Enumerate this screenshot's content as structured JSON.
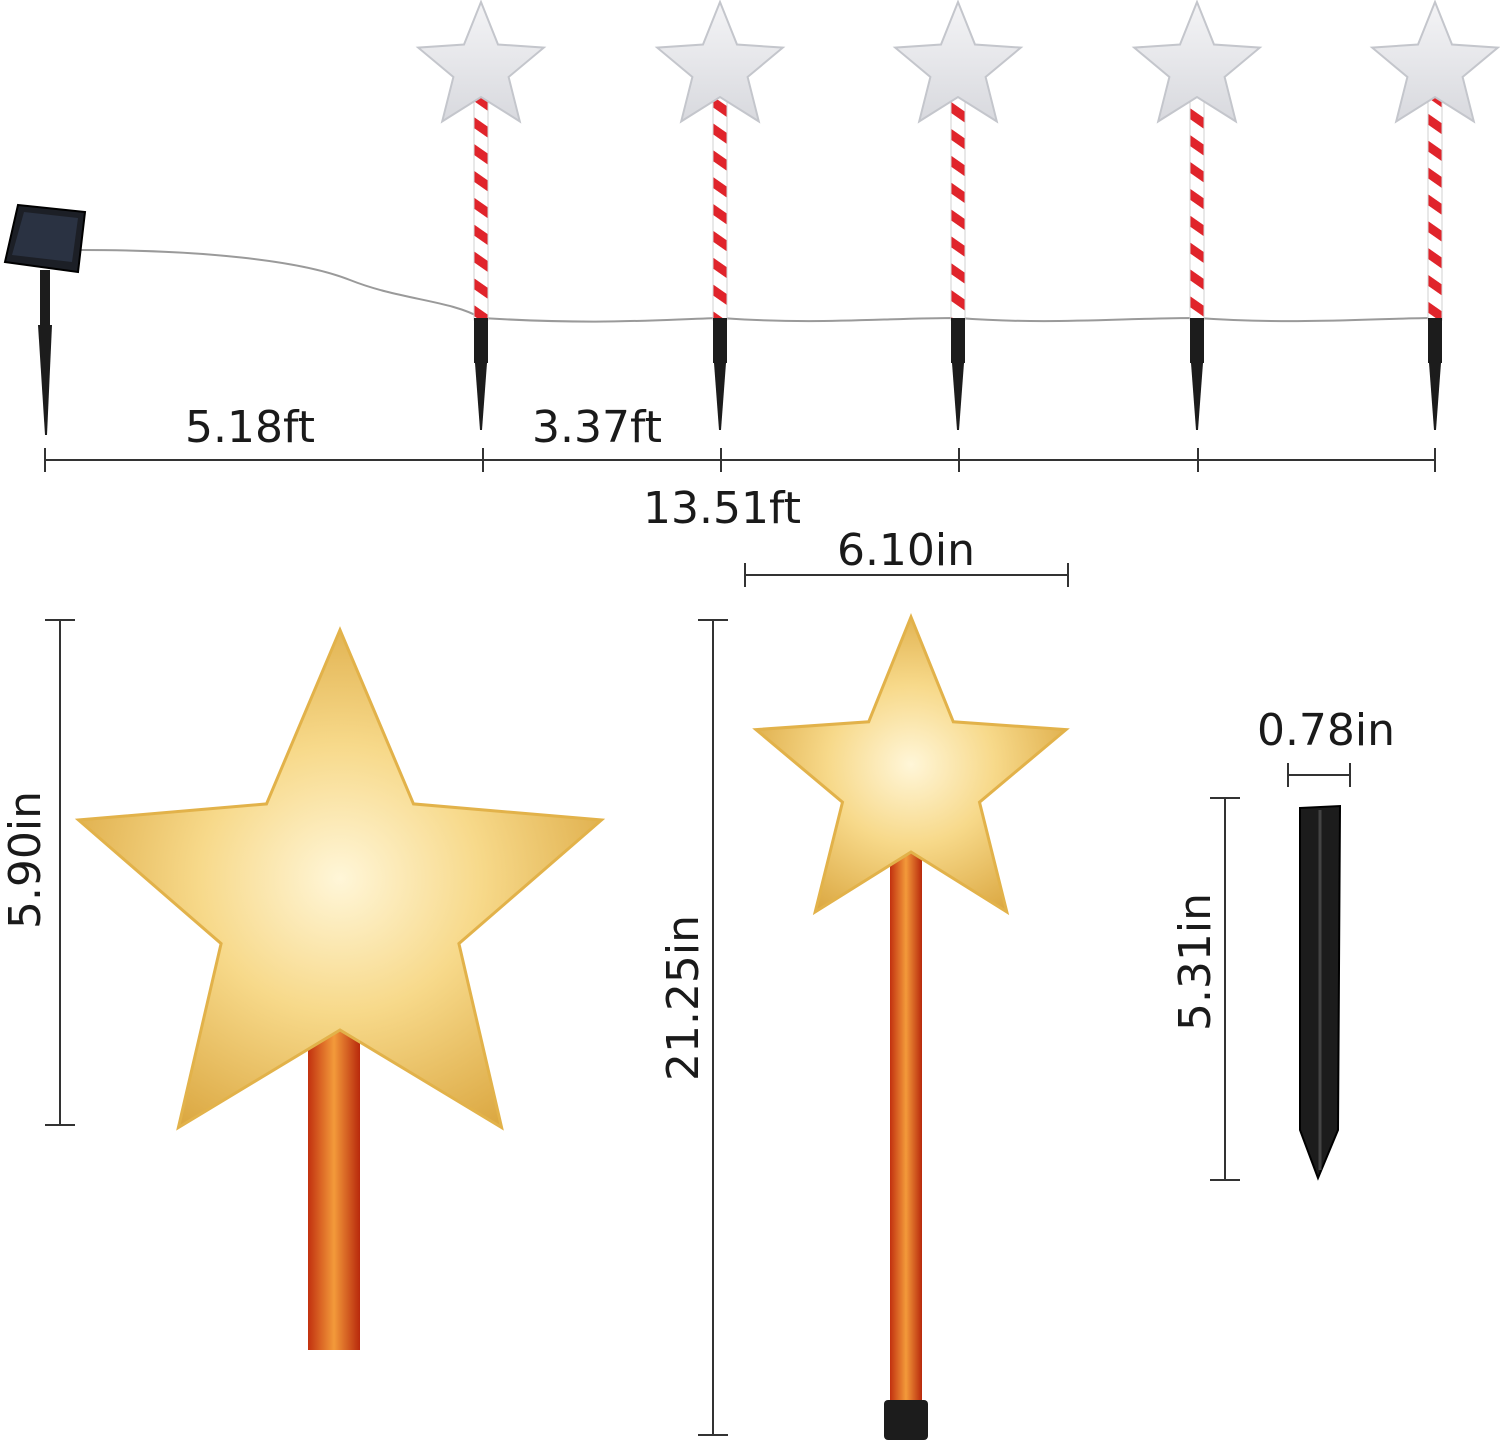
{
  "dimensions": {
    "panel_to_first_stake": "5.18ft",
    "stake_spacing": "3.37ft",
    "total_length": "13.51ft",
    "star_width": "6.10in",
    "star_height": "5.90in",
    "total_height": "21.25in",
    "spike_width": "0.78in",
    "spike_height": "5.31in"
  },
  "colors": {
    "cane_red": "#e0242b",
    "spike_black": "#1c1c1c",
    "glow_gold": "#f4c95a",
    "glow_orange": "#e0521b"
  }
}
